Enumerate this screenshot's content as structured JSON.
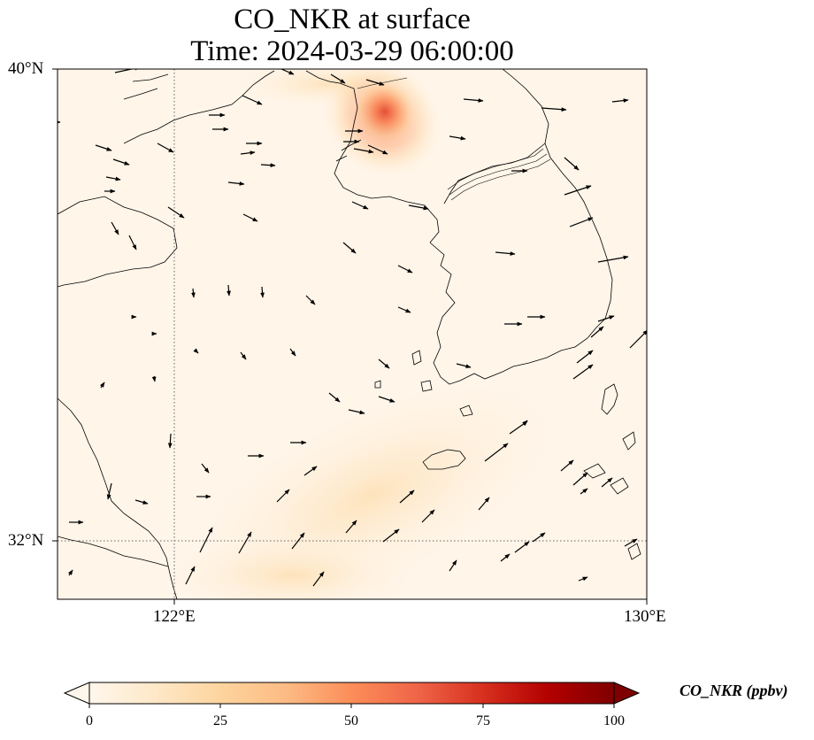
{
  "title": {
    "line1": "CO_NKR at surface",
    "line2": "Time: 2024-03-29 06:00:00"
  },
  "map": {
    "lon_ticks": [
      "122°E",
      "130°E"
    ],
    "lat_ticks": [
      "40°N",
      "32°N"
    ],
    "gridlines": "dotted",
    "features": [
      "coastlines",
      "country-borders",
      "wind-vectors",
      "concentration-field"
    ]
  },
  "colorbar": {
    "label": "CO_NKR (ppbv)",
    "ticks": [
      "0",
      "25",
      "50",
      "75",
      "100"
    ],
    "range": [
      0,
      100
    ],
    "extend": "both",
    "colormap": "OrRd",
    "colors": [
      "#fff7ec",
      "#fee8c8",
      "#fdd49e",
      "#fdbb84",
      "#fc8d59",
      "#ef6548",
      "#d7301f",
      "#b30000",
      "#7f0000"
    ]
  },
  "field": {
    "hotspot_peak_ppbv": 60,
    "background_ppbv": 5
  },
  "wind_vectors": [
    [
      130,
      82,
      28,
      -6
    ],
    [
      50,
      138,
      18,
      0
    ],
    [
      78,
      590,
      16,
      0
    ],
    [
      40,
      581,
      14,
      -3
    ],
    [
      108,
      164,
      18,
      6
    ],
    [
      128,
      180,
      18,
      6
    ],
    [
      178,
      162,
      18,
      10
    ],
    [
      120,
      200,
      16,
      3
    ],
    [
      118,
      216,
      12,
      0
    ],
    [
      190,
      234,
      18,
      12
    ],
    [
      236,
      130,
      18,
      0
    ],
    [
      240,
      146,
      18,
      0
    ],
    [
      274,
      108,
      22,
      10
    ],
    [
      278,
      162,
      18,
      0
    ],
    [
      272,
      174,
      16,
      -2
    ],
    [
      295,
      186,
      16,
      1
    ],
    [
      258,
      206,
      18,
      2
    ],
    [
      275,
      242,
      16,
      8
    ],
    [
      318,
      78,
      14,
      6
    ],
    [
      374,
      84,
      16,
      10
    ],
    [
      414,
      90,
      20,
      6
    ],
    [
      390,
      148,
      20,
      0
    ],
    [
      388,
      160,
      18,
      0
    ],
    [
      400,
      168,
      22,
      4
    ],
    [
      416,
      164,
      22,
      10
    ],
    [
      398,
      228,
      18,
      8
    ],
    [
      462,
      232,
      22,
      4
    ],
    [
      508,
      154,
      18,
      3
    ],
    [
      524,
      112,
      22,
      2
    ],
    [
      612,
      122,
      28,
      2
    ],
    [
      692,
      115,
      18,
      -2
    ],
    [
      638,
      178,
      16,
      14
    ],
    [
      638,
      220,
      30,
      -10
    ],
    [
      644,
      256,
      26,
      -10
    ],
    [
      676,
      296,
      34,
      -6
    ],
    [
      578,
      193,
      18,
      0
    ],
    [
      560,
      285,
      22,
      2
    ],
    [
      388,
      274,
      14,
      12
    ],
    [
      450,
      300,
      16,
      8
    ],
    [
      126,
      251,
      8,
      14
    ],
    [
      146,
      266,
      8,
      16
    ],
    [
      218,
      326,
      1,
      10
    ],
    [
      258,
      322,
      1,
      12
    ],
    [
      296,
      324,
      1,
      12
    ],
    [
      346,
      334,
      10,
      10
    ],
    [
      450,
      347,
      14,
      6
    ],
    [
      570,
      366,
      20,
      0
    ],
    [
      596,
      358,
      20,
      0
    ],
    [
      676,
      363,
      18,
      -6
    ],
    [
      668,
      381,
      14,
      -12
    ],
    [
      652,
      410,
      18,
      -14
    ],
    [
      712,
      393,
      20,
      -20
    ],
    [
      648,
      428,
      22,
      -16
    ],
    [
      428,
      406,
      12,
      10
    ],
    [
      516,
      411,
      16,
      4
    ],
    [
      372,
      444,
      12,
      10
    ],
    [
      428,
      448,
      18,
      6
    ],
    [
      394,
      463,
      18,
      4
    ],
    [
      150,
      358,
      4,
      0
    ],
    [
      173,
      377,
      4,
      0
    ],
    [
      220,
      395,
      4,
      4
    ],
    [
      272,
      398,
      6,
      8
    ],
    [
      328,
      394,
      6,
      8
    ],
    [
      114,
      438,
      4,
      -6
    ],
    [
      174,
      425,
      1,
      6
    ],
    [
      193,
      490,
      -1,
      16
    ],
    [
      228,
      524,
      8,
      10
    ],
    [
      280,
      515,
      18,
      0
    ],
    [
      328,
      500,
      18,
      0
    ],
    [
      344,
      537,
      14,
      -10
    ],
    [
      222,
      561,
      16,
      0
    ],
    [
      153,
      565,
      14,
      4
    ],
    [
      126,
      546,
      -4,
      18
    ],
    [
      548,
      521,
      26,
      -20
    ],
    [
      576,
      490,
      20,
      -14
    ],
    [
      594,
      477,
      2,
      -2
    ],
    [
      313,
      567,
      14,
      -14
    ],
    [
      452,
      568,
      16,
      -14
    ],
    [
      541,
      576,
      12,
      -14
    ],
    [
      634,
      532,
      14,
      -12
    ],
    [
      648,
      548,
      16,
      -14
    ],
    [
      656,
      558,
      8,
      -6
    ],
    [
      680,
      550,
      12,
      -10
    ],
    [
      477,
      590,
      14,
      -14
    ],
    [
      391,
      602,
      12,
      -14
    ],
    [
      433,
      612,
      18,
      -14
    ],
    [
      226,
      624,
      14,
      -28
    ],
    [
      270,
      625,
      14,
      -24
    ],
    [
      330,
      620,
      14,
      -18
    ],
    [
      210,
      660,
      10,
      -20
    ],
    [
      354,
      662,
      12,
      -16
    ],
    [
      508,
      645,
      8,
      -12
    ],
    [
      566,
      634,
      10,
      -8
    ],
    [
      582,
      624,
      16,
      -12
    ],
    [
      602,
      612,
      14,
      -10
    ],
    [
      706,
      617,
      14,
      -8
    ],
    [
      654,
      656,
      10,
      -4
    ],
    [
      78,
      650,
      4,
      -6
    ]
  ]
}
